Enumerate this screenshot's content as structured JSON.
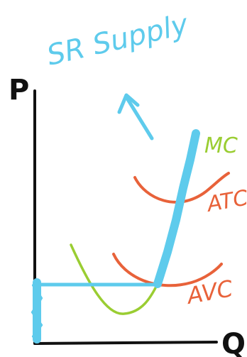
{
  "title": "SR Supply",
  "axes": {
    "y_label": "P",
    "x_label": "Q"
  },
  "curves": [
    {
      "key": "mc",
      "label": "MC",
      "color": "#9acd32"
    },
    {
      "key": "atc",
      "label": "ATC",
      "color": "#e8623a"
    },
    {
      "key": "avc",
      "label": "AVC",
      "color": "#e8623a"
    }
  ],
  "highlight": {
    "name": "short-run supply curve",
    "color": "#5ecbec"
  },
  "axis_color": "#111111"
}
